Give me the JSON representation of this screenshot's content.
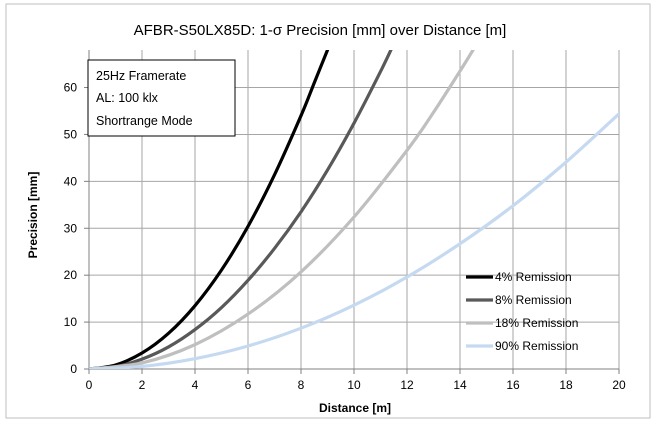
{
  "colors": {
    "background": "#ffffff",
    "frame": "#bfbfbf",
    "grid": "#a6a6a6",
    "axis": "#808080"
  },
  "chart_data": {
    "type": "line",
    "title": "AFBR-S50LX85D: 1-σ Precision [mm] over Distance [m]",
    "xlabel": "Distance [m]",
    "ylabel": "Precision [mm]",
    "xlim": [
      0,
      20
    ],
    "ylim": [
      0,
      68
    ],
    "x_ticks": [
      0,
      2,
      4,
      6,
      8,
      10,
      12,
      14,
      16,
      18,
      20
    ],
    "y_ticks": [
      0,
      10,
      20,
      30,
      40,
      50,
      60
    ],
    "grid": true,
    "legend_position": "bottom-right",
    "annotation": [
      "25Hz  Framerate",
      "AL: 100 klx",
      "Shortrange Mode"
    ],
    "series": [
      {
        "name": "4% Remission",
        "color": "#000000",
        "x": [
          0,
          1,
          2,
          3,
          4,
          5,
          6,
          7,
          8,
          8.5,
          9
        ],
        "y": [
          0,
          0.85,
          3.4,
          7.6,
          13.5,
          21.1,
          30.4,
          41.4,
          54.0,
          61.0,
          68.0
        ]
      },
      {
        "name": "8% Remission",
        "color": "#595959",
        "x": [
          0,
          1,
          2,
          3,
          4,
          5,
          6,
          7,
          8,
          9,
          10,
          11,
          11.5
        ],
        "y": [
          0,
          0.5,
          2.1,
          4.7,
          8.4,
          13.1,
          18.9,
          25.7,
          33.5,
          42.4,
          52.4,
          63.4,
          69.3
        ]
      },
      {
        "name": "18% Remission",
        "color": "#bfbfbf",
        "x": [
          0,
          2,
          4,
          6,
          8,
          10,
          12,
          13,
          14,
          14.6
        ],
        "y": [
          0,
          1.3,
          5.2,
          11.7,
          20.7,
          32.4,
          46.6,
          54.7,
          63.5,
          69.0
        ]
      },
      {
        "name": "90% Remission",
        "color": "#c5d9f1",
        "x": [
          0,
          2,
          4,
          6,
          8,
          10,
          12,
          14,
          16,
          18,
          20
        ],
        "y": [
          0,
          0.55,
          2.2,
          4.9,
          8.7,
          13.6,
          19.6,
          26.7,
          34.8,
          44.1,
          54.4
        ]
      }
    ]
  }
}
